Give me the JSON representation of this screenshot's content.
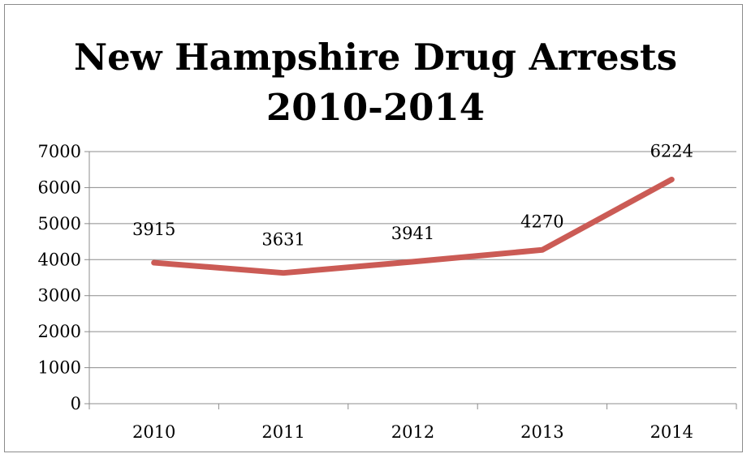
{
  "chart_data": {
    "type": "line",
    "title_lines": [
      "New Hampshire Drug Arrests",
      "2010-2014"
    ],
    "categories": [
      "2010",
      "2011",
      "2012",
      "2013",
      "2014"
    ],
    "series": [
      {
        "values": [
          3915,
          3631,
          3941,
          4270,
          6224
        ],
        "color": "#cb5b55"
      }
    ],
    "data_labels": [
      "3915",
      "3631",
      "3941",
      "4270",
      "6224"
    ],
    "ylim": [
      0,
      7000
    ],
    "yticks": [
      0,
      1000,
      2000,
      3000,
      4000,
      5000,
      6000,
      7000
    ],
    "grid": true,
    "legend": "none",
    "gridline_color": "#8c8c8c"
  }
}
